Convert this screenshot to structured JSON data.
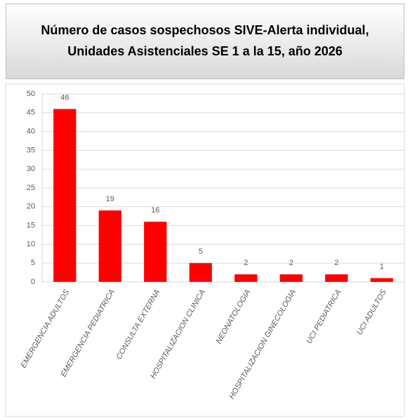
{
  "chart_data": {
    "type": "bar",
    "title": [
      "Número de casos sospechosos SIVE-Alerta individual,",
      "Unidades Asistenciales SE 1 a la 15, año 2026"
    ],
    "categories": [
      "EMERGENCIA ADULTOS",
      "EMERGENCIA PEDIATRICA",
      "CONSULTA EXTERNA",
      "HOSPITALIZACION CLINICA",
      "NEONATOLOGIA",
      "HOSPITALIZACION GINECOLOGIA",
      "UCI PEDIATRICA",
      "UCI ADULTOS"
    ],
    "values": [
      46,
      19,
      16,
      5,
      2,
      2,
      2,
      1
    ],
    "color": "#ff0000",
    "ylim": [
      0,
      50
    ],
    "yticks": [
      0,
      5,
      10,
      15,
      20,
      25,
      30,
      35,
      40,
      45,
      50
    ],
    "grid": true
  }
}
